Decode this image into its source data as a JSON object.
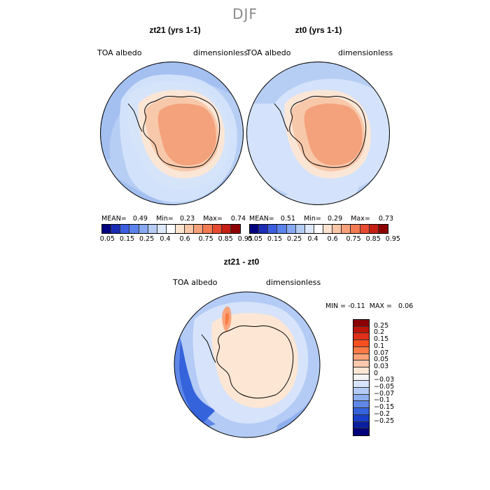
{
  "title": "DJF",
  "panels": [
    {
      "name": "zt21",
      "title": "zt21 (yrs 1-1)",
      "variable": "TOA albedo",
      "units": "dimensionless",
      "stats": {
        "mean_label": "MEAN=",
        "mean": "0.49",
        "min_label": "Min=",
        "min": "0.23",
        "max_label": "Max=",
        "max": "0.74"
      }
    },
    {
      "name": "zt0",
      "title": "zt0 (yrs 1-1)",
      "variable": "TOA albedo",
      "units": "dimensionless",
      "stats": {
        "mean_label": "MEAN=",
        "mean": "0.51",
        "min_label": "Min=",
        "min": "0.29",
        "max_label": "Max=",
        "max": "0.73"
      }
    }
  ],
  "colorbar": {
    "labels": [
      "0.05",
      "0.15",
      "0.25",
      "0.4",
      "0.6",
      "0.75",
      "0.85",
      "0.95"
    ],
    "colors": [
      "#000080",
      "#1a2bb5",
      "#3b5ee0",
      "#5a83ee",
      "#86a9f2",
      "#b5cdf5",
      "#dce8fa",
      "#ffffff",
      "#fde4d0",
      "#fac6a8",
      "#f7a07a",
      "#f47a52",
      "#e84a30",
      "#c81e14",
      "#8c0000"
    ]
  },
  "difference": {
    "title": "zt21 - zt0",
    "variable": "TOA albedo",
    "units": "dimensionless",
    "min_label": "MIN =",
    "min": "-0.11",
    "max_label": "MAX =",
    "max": "0.06",
    "labels": [
      "0.25",
      "0.2",
      "0.15",
      "0.1",
      "0.07",
      "0.05",
      "0.03",
      "0",
      "−0.03",
      "−0.05",
      "−0.07",
      "−0.1",
      "−0.15",
      "−0.2",
      "−0.25"
    ],
    "colors": [
      "#8b0000",
      "#c0140a",
      "#e0301a",
      "#f65020",
      "#fb7a45",
      "#f9a37a",
      "#fbc8ad",
      "#fde6d4",
      "#f4f4f4",
      "#d6e3fa",
      "#b3cbf5",
      "#8fb0f0",
      "#5f88e8",
      "#3463dc",
      "#1a3ec8",
      "#0a1fa0",
      "#00007a"
    ]
  }
}
